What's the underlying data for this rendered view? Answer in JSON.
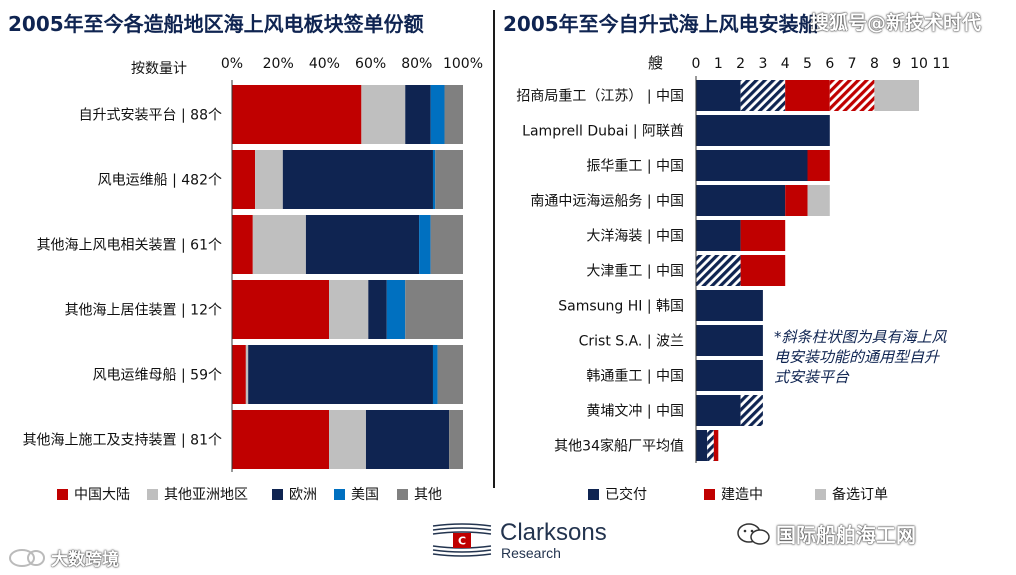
{
  "left_chart": {
    "title": "2005年至今各造船地区海上风电板块签单份额",
    "axis_caption": "按数量计"
  },
  "right_chart": {
    "title": "2005年至今自升式海上风电安装船",
    "axis_caption": "艘",
    "note": "*斜条柱状图为具有海上风电安装功能的通用型自升式安装平台"
  },
  "colors": {
    "china": "#c00000",
    "asia": "#bfbfbf",
    "europe": "#0f2451",
    "usa": "#0070c0",
    "other": "#808080",
    "delivered": "#0f2451",
    "construction": "#c00000",
    "option": "#bfbfbf"
  },
  "chart_data": [
    {
      "type": "bar",
      "orientation": "horizontal",
      "stacked": true,
      "percent": true,
      "title": "2005年至今各造船地区海上风电板块签单份额",
      "xlabel": "按数量计",
      "x_ticks": [
        "0%",
        "20%",
        "40%",
        "60%",
        "80%",
        "100%"
      ],
      "xlim": [
        0,
        100
      ],
      "categories": [
        "自升式安装平台 | 88个",
        "风电运维船 | 482个",
        "其他海上风电相关装置 | 61个",
        "其他海上居住装置 | 12个",
        "风电运维母船 | 59个",
        "其他海上施工及支持装置 | 81个"
      ],
      "series": [
        {
          "name": "中国大陆",
          "color_key": "china",
          "values": [
            56,
            10,
            9,
            42,
            6,
            42
          ]
        },
        {
          "name": "其他亚洲地区",
          "color_key": "asia",
          "values": [
            19,
            12,
            23,
            17,
            1,
            16
          ]
        },
        {
          "name": "欧洲",
          "color_key": "europe",
          "values": [
            11,
            65,
            49,
            8,
            80,
            36
          ]
        },
        {
          "name": "美国",
          "color_key": "usa",
          "values": [
            6,
            1,
            5,
            8,
            2,
            0
          ]
        },
        {
          "name": "其他",
          "color_key": "other",
          "values": [
            8,
            12,
            14,
            25,
            11,
            6
          ]
        }
      ]
    },
    {
      "type": "bar",
      "orientation": "horizontal",
      "stacked": true,
      "title": "2005年至今自升式海上风电安装船",
      "xlabel": "艘",
      "x_ticks": [
        "0",
        "1",
        "2",
        "3",
        "4",
        "5",
        "6",
        "7",
        "8",
        "9",
        "10",
        "11"
      ],
      "xlim": [
        0,
        11
      ],
      "categories": [
        "招商局重工（江苏） | 中国",
        "Lamprell Dubai | 阿联酋",
        "振华重工 | 中国",
        "南通中远海运船务 | 中国",
        "大洋海装 | 中国",
        "大津重工 | 中国",
        "Samsung HI | 韩国",
        "Crist S.A. | 波兰",
        "韩通重工 | 中国",
        "黄埔文冲 | 中国",
        "其他34家船厂平均值"
      ],
      "segments": [
        [
          {
            "series": "已交付",
            "value": 2
          },
          {
            "series": "已交付",
            "value": 2,
            "hatched": true
          },
          {
            "series": "建造中",
            "value": 2
          },
          {
            "series": "建造中",
            "value": 2,
            "hatched": true
          },
          {
            "series": "备选订单",
            "value": 2
          }
        ],
        [
          {
            "series": "已交付",
            "value": 6
          }
        ],
        [
          {
            "series": "已交付",
            "value": 5
          },
          {
            "series": "建造中",
            "value": 1
          }
        ],
        [
          {
            "series": "已交付",
            "value": 4
          },
          {
            "series": "建造中",
            "value": 1
          },
          {
            "series": "备选订单",
            "value": 1
          }
        ],
        [
          {
            "series": "已交付",
            "value": 2
          },
          {
            "series": "建造中",
            "value": 2
          }
        ],
        [
          {
            "series": "已交付",
            "value": 2,
            "hatched": true
          },
          {
            "series": "建造中",
            "value": 2
          }
        ],
        [
          {
            "series": "已交付",
            "value": 3
          }
        ],
        [
          {
            "series": "已交付",
            "value": 3
          }
        ],
        [
          {
            "series": "已交付",
            "value": 3
          }
        ],
        [
          {
            "series": "已交付",
            "value": 2
          },
          {
            "series": "已交付",
            "value": 1,
            "hatched": true
          }
        ],
        [
          {
            "series": "已交付",
            "value": 0.5
          },
          {
            "series": "已交付",
            "value": 0.3,
            "hatched": true
          },
          {
            "series": "建造中",
            "value": 0.2
          }
        ]
      ],
      "legend": [
        {
          "name": "已交付",
          "color_key": "delivered"
        },
        {
          "name": "建造中",
          "color_key": "construction"
        },
        {
          "name": "备选订单",
          "color_key": "option"
        }
      ]
    }
  ],
  "logo": {
    "name": "Clarksons",
    "sub": "Research"
  },
  "watermarks": {
    "top_right": "搜狐号@新技术时代",
    "bottom_right": "国际船舶海工网",
    "bottom_left": "大数跨境"
  }
}
